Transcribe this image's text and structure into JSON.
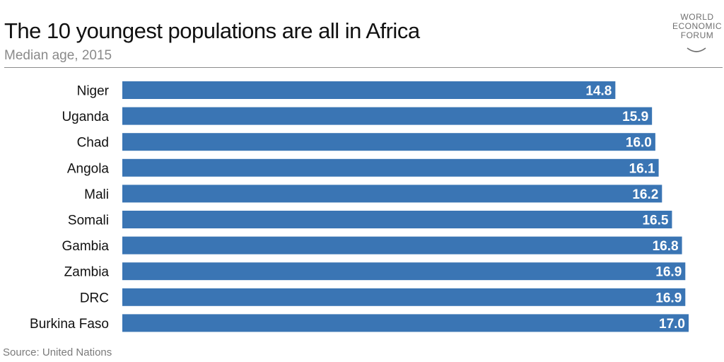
{
  "title": "The 10 youngest populations are all in Africa",
  "subtitle": "Median age, 2015",
  "source": "Source: United Nations",
  "logo": {
    "lines": [
      "WORLD",
      "ECONOMIC",
      "FORUM"
    ]
  },
  "colors": {
    "bar": "#3a75b4",
    "bar_label": "#ffffff",
    "category_label": "#111111"
  },
  "chart_data": {
    "type": "bar",
    "orientation": "horizontal",
    "categories": [
      "Niger",
      "Uganda",
      "Chad",
      "Angola",
      "Mali",
      "Somali",
      "Gambia",
      "Zambia",
      "DRC",
      "Burkina Faso"
    ],
    "values": [
      14.8,
      15.9,
      16.0,
      16.1,
      16.2,
      16.5,
      16.8,
      16.9,
      16.9,
      17.0
    ],
    "labels": [
      "14.8",
      "15.9",
      "16.0",
      "16.1",
      "16.2",
      "16.5",
      "16.8",
      "16.9",
      "16.9",
      "17.0"
    ],
    "xlim": [
      0,
      17.0
    ],
    "grid": false,
    "legend": "none"
  }
}
